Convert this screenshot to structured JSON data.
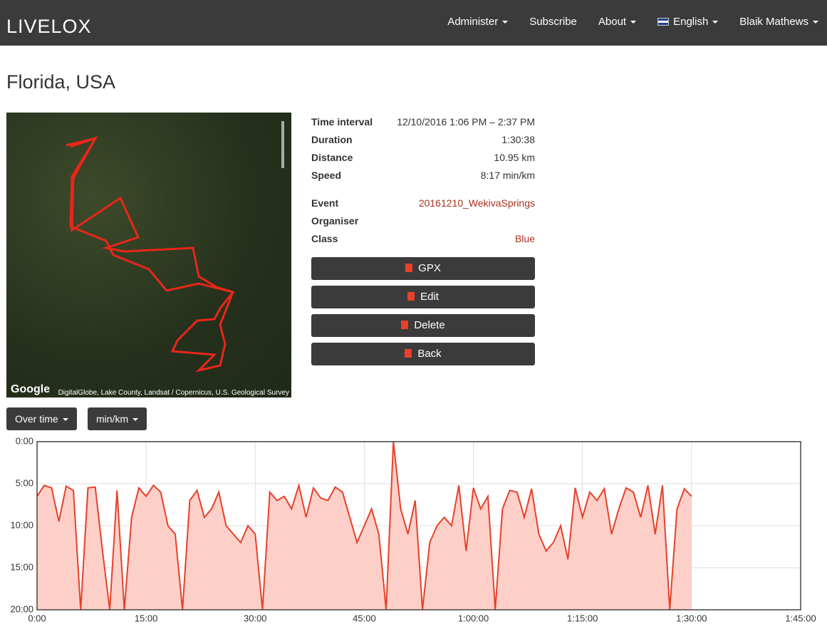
{
  "nav": {
    "logo": "LIVELOX",
    "items": [
      "Administer",
      "Subscribe",
      "About",
      "English",
      "Blaik Mathews"
    ]
  },
  "page_title": "Florida, USA",
  "map": {
    "logo": "Google",
    "attribution": "DigitalGlobe, Lake County, Landsat / Copernicus, U.S. Geological Survey"
  },
  "details": {
    "rows": [
      [
        "Time interval",
        "12/10/2016 1:06 PM – 2:37 PM"
      ],
      [
        "Duration",
        "1:30:38"
      ],
      [
        "Distance",
        "10.95 km"
      ],
      [
        "Speed",
        "8:17 min/km"
      ]
    ],
    "rows2": [
      [
        "Event",
        "20161210_WekivaSprings"
      ],
      [
        "Organiser",
        null
      ],
      [
        "Class",
        "Blue"
      ]
    ]
  },
  "buttons": [
    "GPX",
    "Edit",
    "Delete",
    "Back"
  ],
  "dropdowns": [
    "Over time",
    "min/km"
  ],
  "chart_data": {
    "type": "area",
    "color": "#e8402a",
    "fill": "#fcd0c8",
    "grid": true,
    "y_reversed": true,
    "xlim": [
      0,
      105
    ],
    "xticks": [
      {
        "value": 0,
        "label": "0:00"
      },
      {
        "value": 15,
        "label": "15:00"
      },
      {
        "value": 30,
        "label": "30:00"
      },
      {
        "value": 45,
        "label": "45:00"
      },
      {
        "value": 60,
        "label": "1:00:00"
      },
      {
        "value": 75,
        "label": "1:15:00"
      },
      {
        "value": 90,
        "label": "1:30:00"
      },
      {
        "value": 105,
        "label": "1:45:00"
      }
    ],
    "ylim": [
      0,
      20
    ],
    "yticks": [
      {
        "value": 0,
        "label": "0:00"
      },
      {
        "value": 5,
        "label": "5:00"
      },
      {
        "value": 10,
        "label": "10:00"
      },
      {
        "value": 15,
        "label": "15:00"
      },
      {
        "value": 20,
        "label": "20:00"
      }
    ],
    "x": [
      0,
      1,
      2,
      3,
      4,
      5,
      6,
      7,
      8,
      9,
      10,
      11,
      12,
      13,
      14,
      15,
      16,
      17,
      18,
      19,
      20,
      21,
      22,
      23,
      24,
      25,
      26,
      27,
      28,
      29,
      30,
      31,
      32,
      33,
      34,
      35,
      36,
      37,
      38,
      39,
      40,
      41,
      42,
      43,
      44,
      45,
      46,
      47,
      48,
      49,
      50,
      51,
      52,
      53,
      54,
      55,
      56,
      57,
      58,
      59,
      60,
      61,
      62,
      63,
      64,
      65,
      66,
      67,
      68,
      69,
      70,
      71,
      72,
      73,
      74,
      75,
      76,
      77,
      78,
      79,
      80,
      81,
      82,
      83,
      84,
      85,
      86,
      87,
      88,
      89,
      90
    ],
    "values": [
      6.5,
      5.2,
      5.5,
      9.5,
      5.3,
      5.8,
      20,
      5.5,
      5.4,
      13,
      20,
      5.8,
      20,
      9,
      5.5,
      6.5,
      5.2,
      6,
      10,
      11,
      20,
      7,
      5.8,
      9,
      8,
      6,
      10,
      11,
      12,
      10,
      11,
      20,
      6,
      7,
      6.5,
      8,
      5.2,
      9,
      5.5,
      6.7,
      7,
      5.4,
      6,
      9,
      12,
      10,
      8,
      11,
      20,
      0,
      8,
      11,
      7,
      20,
      12,
      10,
      9,
      10,
      5.2,
      13,
      5.5,
      8,
      6.5,
      20,
      8,
      5.8,
      6,
      9,
      5.6,
      11,
      13,
      12,
      10,
      14,
      5.5,
      9,
      6,
      7,
      5.6,
      11,
      8,
      5.5,
      6,
      9,
      5.2,
      11,
      5.2,
      20,
      8,
      5.6,
      6.5
    ]
  }
}
